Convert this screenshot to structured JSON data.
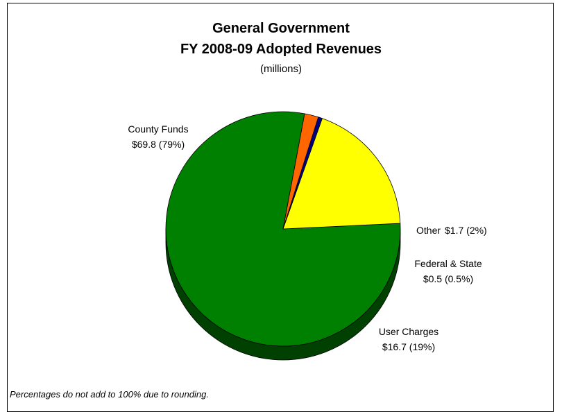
{
  "chart_data": {
    "type": "pie",
    "title": "General Government",
    "title_line2": "FY 2008-09 Adopted Revenues",
    "subtitle": "(millions)",
    "footnote": "Percentages do not add to 100% due to rounding.",
    "slices": [
      {
        "label": "County Funds",
        "value": 69.8,
        "value_text": "$69.8 (79%)",
        "percent": 79,
        "color": "#008000",
        "side_color": "#004000"
      },
      {
        "label": "Other",
        "value": 1.7,
        "value_text": "$1.7  (2%)",
        "percent": 2,
        "color": "#FF6600",
        "side_color": "#803300"
      },
      {
        "label": "Federal & State",
        "value": 0.5,
        "value_text": "$0.5 (0.5%)",
        "percent": 0.5,
        "color": "#000080",
        "side_color": "#000040"
      },
      {
        "label": "User Charges",
        "value": 16.7,
        "value_text": "$16.7 (19%)",
        "percent": 19,
        "color": "#FFFF00",
        "side_color": "#808000"
      }
    ],
    "legend": "none",
    "style": "3d-exploded-none"
  }
}
